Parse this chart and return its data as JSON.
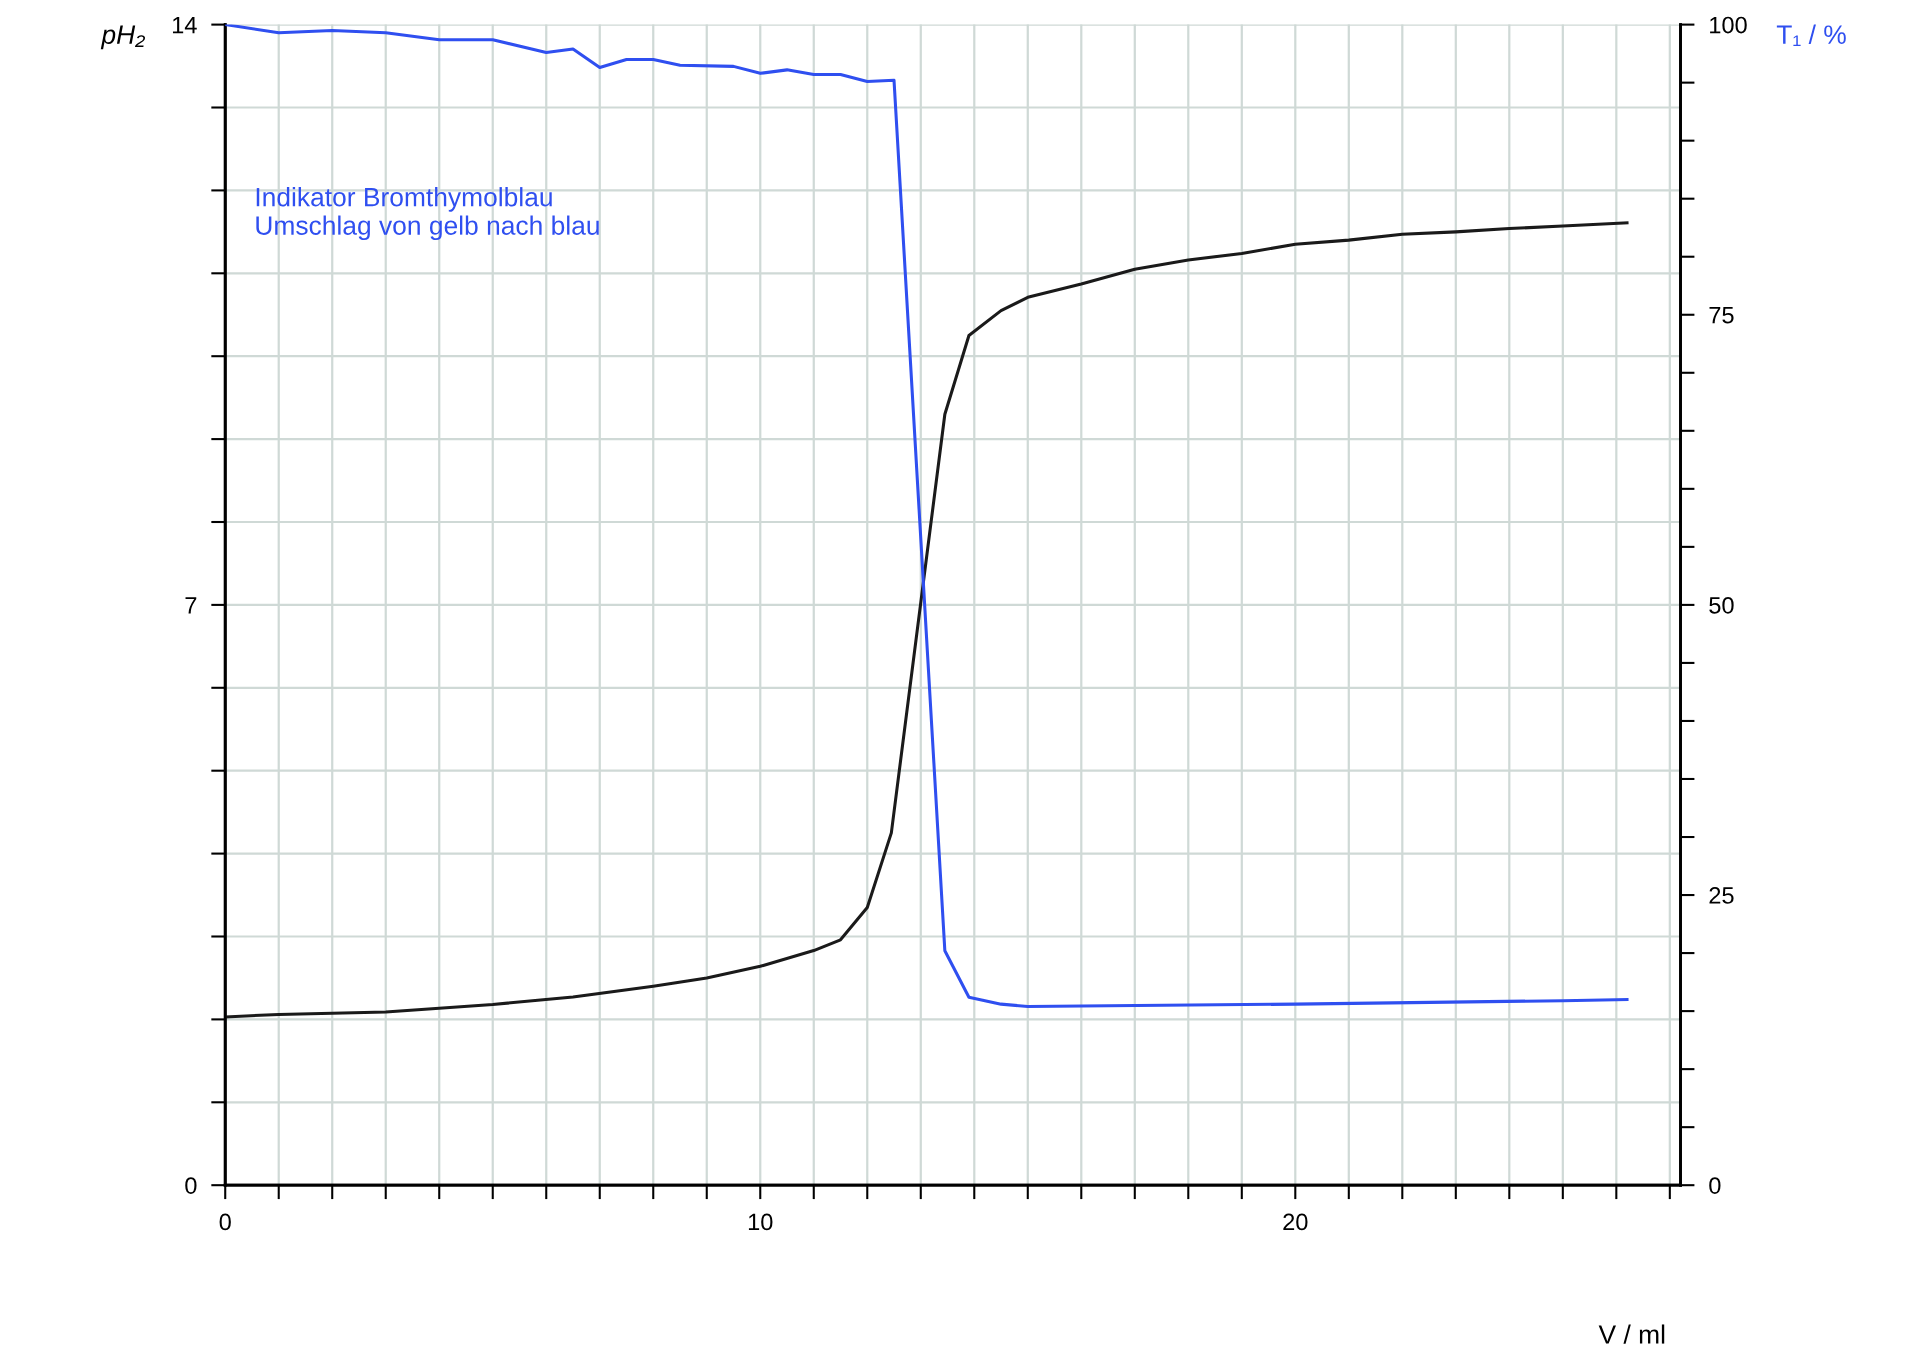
{
  "chart_data": {
    "type": "line",
    "xlabel": "V / ml",
    "ylabel": "pH₂",
    "y2label": "T₁ / %",
    "annotations": [
      "Indikator Bromthymolblau\nUmschlag von gelb nach blau"
    ],
    "xlim": [
      0,
      27.2
    ],
    "ylim": [
      0,
      14
    ],
    "y2lim": [
      0,
      100
    ],
    "xticks": [
      0,
      {
        "value": 1,
        "label": null
      },
      {
        "value": 2,
        "label": null
      },
      {
        "value": 3,
        "label": null
      },
      {
        "value": 4,
        "label": null
      },
      {
        "value": 5,
        "label": null
      },
      {
        "value": 6,
        "label": null
      },
      {
        "value": 7,
        "label": null
      },
      {
        "value": 8,
        "label": null
      },
      {
        "value": 9,
        "label": null
      },
      10,
      {
        "value": 11,
        "label": null
      },
      {
        "value": 12,
        "label": null
      },
      {
        "value": 13,
        "label": null
      },
      {
        "value": 14,
        "label": null
      },
      {
        "value": 15,
        "label": null
      },
      {
        "value": 16,
        "label": null
      },
      {
        "value": 17,
        "label": null
      },
      {
        "value": 18,
        "label": null
      },
      {
        "value": 19,
        "label": null
      },
      20,
      {
        "value": 21,
        "label": null
      },
      {
        "value": 22,
        "label": null
      },
      {
        "value": 23,
        "label": null
      },
      {
        "value": 24,
        "label": null
      },
      {
        "value": 25,
        "label": null
      },
      {
        "value": 26,
        "label": null
      },
      {
        "value": 27,
        "label": null
      }
    ],
    "yticks": [
      0,
      {
        "value": 1,
        "label": null
      },
      {
        "value": 2,
        "label": null
      },
      {
        "value": 3,
        "label": null
      },
      {
        "value": 4,
        "label": null
      },
      {
        "value": 5,
        "label": null
      },
      {
        "value": 6,
        "label": null
      },
      7,
      {
        "value": 8,
        "label": null
      },
      {
        "value": 9,
        "label": null
      },
      {
        "value": 10,
        "label": null
      },
      {
        "value": 11,
        "label": null
      },
      {
        "value": 12,
        "label": null
      },
      {
        "value": 13,
        "label": null
      },
      14
    ],
    "y2ticks": [
      0,
      {
        "value": 5,
        "label": null
      },
      {
        "value": 10,
        "label": null
      },
      {
        "value": 15,
        "label": null
      },
      {
        "value": 20,
        "label": null
      },
      25,
      {
        "value": 30,
        "label": null
      },
      {
        "value": 35,
        "label": null
      },
      {
        "value": 40,
        "label": null
      },
      {
        "value": 45,
        "label": null
      },
      50,
      {
        "value": 55,
        "label": null
      },
      {
        "value": 60,
        "label": null
      },
      {
        "value": 65,
        "label": null
      },
      {
        "value": 70,
        "label": null
      },
      75,
      {
        "value": 80,
        "label": null
      },
      {
        "value": 85,
        "label": null
      },
      {
        "value": 90,
        "label": null
      },
      {
        "value": 95,
        "label": null
      },
      100
    ],
    "grid": true,
    "marker": "none",
    "line_style": "solid",
    "series": [
      {
        "color": "#1a1a1a",
        "axis": "y",
        "x": [
          0,
          1,
          3,
          5,
          6.5,
          8,
          9,
          10,
          11,
          11.5,
          12,
          12.45,
          13.45,
          13.9,
          14.5,
          15,
          16,
          17,
          18,
          19,
          20,
          21,
          22,
          23,
          24,
          25,
          26.2
        ],
        "values": [
          2.03,
          2.06,
          2.09,
          2.18,
          2.27,
          2.4,
          2.5,
          2.64,
          2.83,
          2.96,
          3.35,
          4.25,
          9.3,
          10.25,
          10.55,
          10.71,
          10.87,
          11.05,
          11.16,
          11.24,
          11.35,
          11.4,
          11.47,
          11.5,
          11.54,
          11.57,
          11.61
        ]
      },
      {
        "color": "#2f4ff0",
        "axis": "y2",
        "x": [
          0,
          1,
          2,
          3,
          4,
          5,
          6,
          6.5,
          7,
          7.5,
          8,
          8.5,
          9.5,
          10,
          10.5,
          11,
          11.5,
          12,
          12.5,
          13.45,
          13.9,
          14.5,
          15,
          20,
          25,
          26.2
        ],
        "values": [
          100,
          99.3,
          99.5,
          99.3,
          98.7,
          98.7,
          97.6,
          97.9,
          96.3,
          97.0,
          97.0,
          96.5,
          96.4,
          95.8,
          96.1,
          95.7,
          95.7,
          95.1,
          95.2,
          20.2,
          16.2,
          15.6,
          15.4,
          15.6,
          15.9,
          16.0
        ]
      }
    ]
  }
}
